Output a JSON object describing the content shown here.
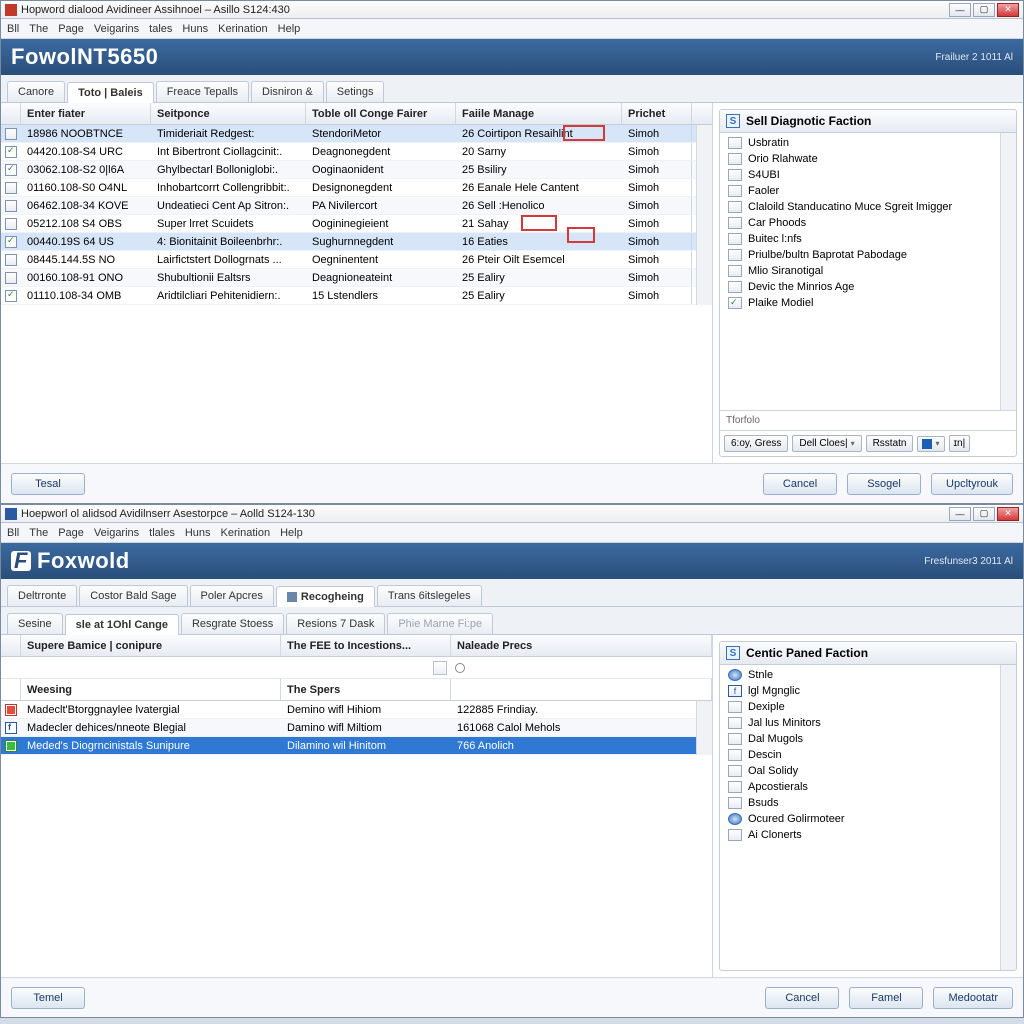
{
  "window_top": {
    "title": "Hopword dialood Avidineer Assihnoel – Asillo S124:430",
    "menu": [
      "Bll",
      "The",
      "Page",
      "Veigarins",
      "tales",
      "Huns",
      "Kerination",
      "Help"
    ],
    "brand": "FowolNT5650",
    "tagline": "Frailuer 2 1011 Al",
    "tabs": [
      {
        "label": "Canore",
        "active": false
      },
      {
        "label": "Toto | Baleis",
        "active": true
      },
      {
        "label": "Freace Tepalls",
        "active": false
      },
      {
        "label": "Disniron &",
        "active": false
      },
      {
        "label": "Setings",
        "active": false
      }
    ],
    "columns": [
      "Enter fiater",
      "Seitponce",
      "Toble oll Conge Fairer",
      "Faiile Manage",
      "Prichet"
    ],
    "rows": [
      {
        "icon": "doc",
        "id": "18986 NOOBTNCE",
        "b": "Timideriait Redgest:",
        "c": "StendoriMetor",
        "d": "26 Coirtipon Resaihlint",
        "e": "Simoh",
        "sel": true
      },
      {
        "icon": "check",
        "id": "04420.108-S4 URC",
        "b": "Int Bibertront Ciollagcinit:.",
        "c": "Deagnonegdent",
        "d": "20 Sarny",
        "e": "Simoh"
      },
      {
        "icon": "check",
        "id": "03062.108-S2 0|l6A",
        "b": "Ghylbectarl Bolloniglobi:.",
        "c": "Ooginaonident",
        "d": "25 Bsiliry",
        "e": "Simoh"
      },
      {
        "icon": "doc",
        "id": "01160.108-S0 O4NL",
        "b": "Inhobartcorrt Collengribbit:.",
        "c": "Designonegdent",
        "d": "26 Eanale Hele Cantent",
        "e": "Simoh"
      },
      {
        "icon": "doc",
        "id": "06462.108-34 KOVE",
        "b": "Undeatieci Cent Ap Sitron:.",
        "c": "PA Nivilercort",
        "d": "26 Sell :Henolico",
        "e": "Simoh"
      },
      {
        "icon": "doc",
        "id": "05212.108 S4 OBS",
        "b": "Super lrret Scuidets",
        "c": "Oogininegieient",
        "d": "21 Sahay",
        "e": "Simoh"
      },
      {
        "icon": "check",
        "id": "00440.19S 64 US",
        "b": "4: Bionitainit Boileenbrhr:.",
        "c": "Sughurnnegdent",
        "d": "16 Eaties",
        "e": "Simoh",
        "sel": true
      },
      {
        "icon": "doc",
        "id": "08445.144.5S NO",
        "b": "Lairfictstert Dollogrnats ...",
        "c": "Oegninentent",
        "d": "26 Pteir Oilt Esemcel",
        "e": "Simoh"
      },
      {
        "icon": "doc",
        "id": "00160.108-91 ONO",
        "b": "Shubultionii Ealtsrs",
        "c": "Deagnioneateint",
        "d": "25 Ealiry",
        "e": "Simoh"
      },
      {
        "icon": "check",
        "id": "01110.108-34 OMB",
        "b": "Aridtilcliari Pehitenidiern:.",
        "c": "15 Lstendlers",
        "d": "25 Ealiry",
        "e": "Simoh"
      }
    ],
    "side": {
      "title": "Sell Diagnotic Faction",
      "items": [
        {
          "icon": "doc",
          "label": "Usbratin"
        },
        {
          "icon": "doc",
          "label": "Orio Rlahwate"
        },
        {
          "icon": "doc",
          "label": "S4UBI"
        },
        {
          "icon": "doc",
          "label": "Faoler"
        },
        {
          "icon": "doc",
          "label": "Claloild Standucatino Muce Sgreit lmigger"
        },
        {
          "icon": "doc",
          "label": "Car Phoods"
        },
        {
          "icon": "doc",
          "label": "Buitec l:nfs"
        },
        {
          "icon": "doc",
          "label": "Priulbe/bultn Baprotat Pabodage"
        },
        {
          "icon": "doc",
          "label": "Mlio Siranotigal"
        },
        {
          "icon": "doc",
          "label": "Devic the Minrios Age"
        },
        {
          "icon": "check",
          "label": "Plaike Modiel"
        }
      ],
      "toolbar_label": "Tforfolo",
      "buttons": [
        "6:oy, Gress",
        "Dell Cloes|",
        "Rsstatn"
      ]
    },
    "footer": {
      "left": "Tesal",
      "right": [
        "Cancel",
        "Ssogel",
        "Upcltyrouk"
      ]
    }
  },
  "window_bottom": {
    "title": "Hoepworl ol alidsod Avidilnserr Asestorpce – Aolld S124-130",
    "menu": [
      "Bll",
      "The",
      "Page",
      "Veigarins",
      "tlales",
      "Huns",
      "Kerination",
      "Help"
    ],
    "brand": "Foxwold",
    "tagline": "Fresfunser3 2011 Al",
    "tabs": [
      {
        "label": "Deltrronte",
        "active": false
      },
      {
        "label": "Costor Bald Sage",
        "active": false
      },
      {
        "label": "Poler Apcres",
        "active": false
      },
      {
        "label": "Recogheing",
        "active": true,
        "icon": true
      },
      {
        "label": "Trans 6itslegeles",
        "active": false
      }
    ],
    "subtabs": [
      {
        "label": "Sesine",
        "active": false
      },
      {
        "label": "sle at 1Ohl Cange",
        "active": true
      },
      {
        "label": "Resgrate Stoess",
        "active": false
      },
      {
        "label": "Resions 7 Dask",
        "active": false
      },
      {
        "label": "Phie Marne Fi:pe",
        "active": false,
        "muted": true
      }
    ],
    "columns": [
      "Supere Bamice | conipure",
      "The FEE to Incestions...",
      "Naleade Precs"
    ],
    "desc_header": {
      "a": "Weesing",
      "b": "The Spers"
    },
    "rows": [
      {
        "icon": "red",
        "a": "Madeclt'Btorggnaylee lvatergial",
        "b": "Demino wifl Hihiom",
        "c": "122885 Frindiay."
      },
      {
        "icon": "f",
        "a": "Madecler dehices/nneote Blegial",
        "b": "Damino wifl Miltiom",
        "c": "161068 Calol Mehols"
      },
      {
        "icon": "green",
        "a": "Meded's Diogrncinistals Sunipure",
        "b": "Dilamino wil Hinitom",
        "c": "766 Anolich",
        "sel": true
      }
    ],
    "side": {
      "title": "Centic Paned Faction",
      "items": [
        {
          "icon": "globe",
          "label": "Stnle"
        },
        {
          "icon": "f",
          "label": "lgl Mgnglic"
        },
        {
          "icon": "doc",
          "label": "Dexiple"
        },
        {
          "icon": "doc",
          "label": "Jal lus Minitors"
        },
        {
          "icon": "doc",
          "label": "Dal Mugols"
        },
        {
          "icon": "doc",
          "label": "Descin"
        },
        {
          "icon": "doc",
          "label": "Oal Solidy"
        },
        {
          "icon": "doc",
          "label": "Apcostierals"
        },
        {
          "icon": "doc",
          "label": "Bsuds"
        },
        {
          "icon": "globe",
          "label": "Ocured Golirmoteer"
        },
        {
          "icon": "doc",
          "label": "Ai Clonerts"
        }
      ]
    },
    "footer": {
      "left": "Temel",
      "right": [
        "Cancel",
        "Famel",
        "Medootatr"
      ]
    }
  },
  "colors": {
    "brand_bg": "#2f5a8a",
    "accent": "#3a71b8",
    "row_sel": "#d6e5f7",
    "row_sel_blue": "#2f78d4",
    "red": "#d23a3a"
  }
}
